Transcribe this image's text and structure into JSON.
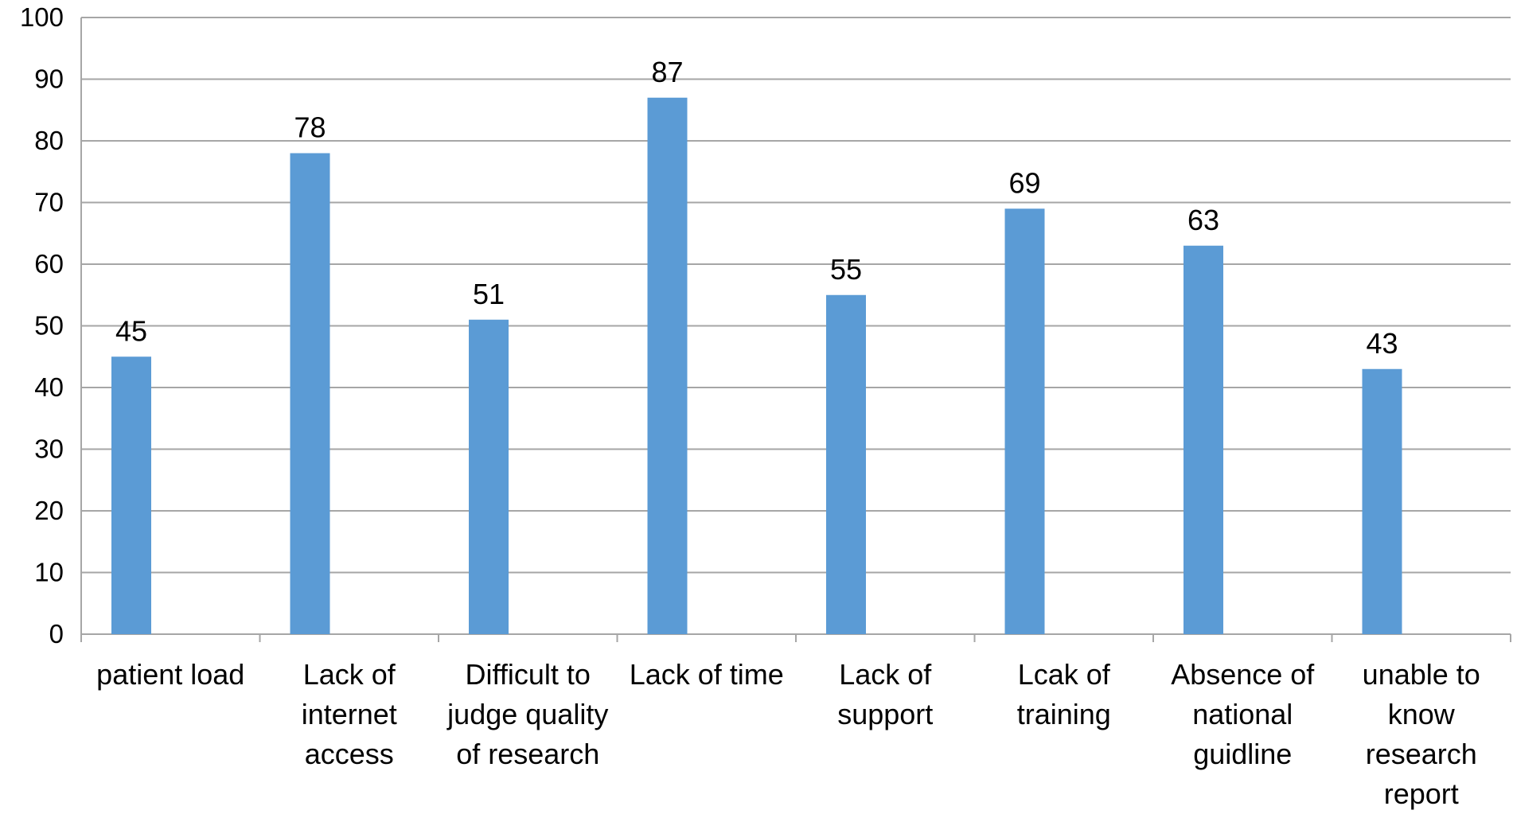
{
  "chart_data": {
    "type": "bar",
    "title": "",
    "xlabel": "",
    "ylabel": "",
    "ylim": [
      0,
      100
    ],
    "y_ticks": [
      0,
      10,
      20,
      30,
      40,
      50,
      60,
      70,
      80,
      90,
      100
    ],
    "grid": true,
    "categories": [
      [
        "patient load"
      ],
      [
        "Lack of",
        "internet",
        "access"
      ],
      [
        "Difficult to",
        "judge quality",
        "of research"
      ],
      [
        "Lack of time"
      ],
      [
        "Lack of",
        "support"
      ],
      [
        "Lcak of",
        "training"
      ],
      [
        "Absence of",
        "national",
        "guidline"
      ],
      [
        "unable to",
        "know",
        "research",
        "report"
      ]
    ],
    "values": [
      45,
      78,
      51,
      87,
      55,
      69,
      63,
      43
    ],
    "data_labels": [
      "45",
      "78",
      "51",
      "87",
      "55",
      "69",
      "63",
      "43"
    ],
    "bar_color": "#5b9bd5",
    "grid_color": "#a6a6a6"
  }
}
